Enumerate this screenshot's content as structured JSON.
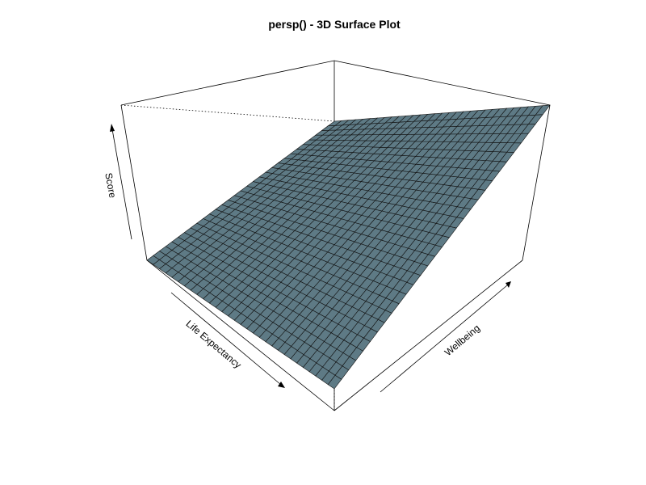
{
  "chart_data": {
    "type": "surface",
    "title": "persp() - 3D Surface Plot",
    "xlabel": "Life Expectancy",
    "ylabel": "Wellbeing",
    "zlabel": "Score",
    "surface_color": "#5e7a85",
    "grid_lines": "#111111",
    "corners": {
      "life_min_wellbeing_min": 0.0,
      "life_max_wellbeing_min": 0.0,
      "life_min_wellbeing_max": 1.0,
      "life_max_wellbeing_max": 1.0
    },
    "ticks_shown": false
  }
}
